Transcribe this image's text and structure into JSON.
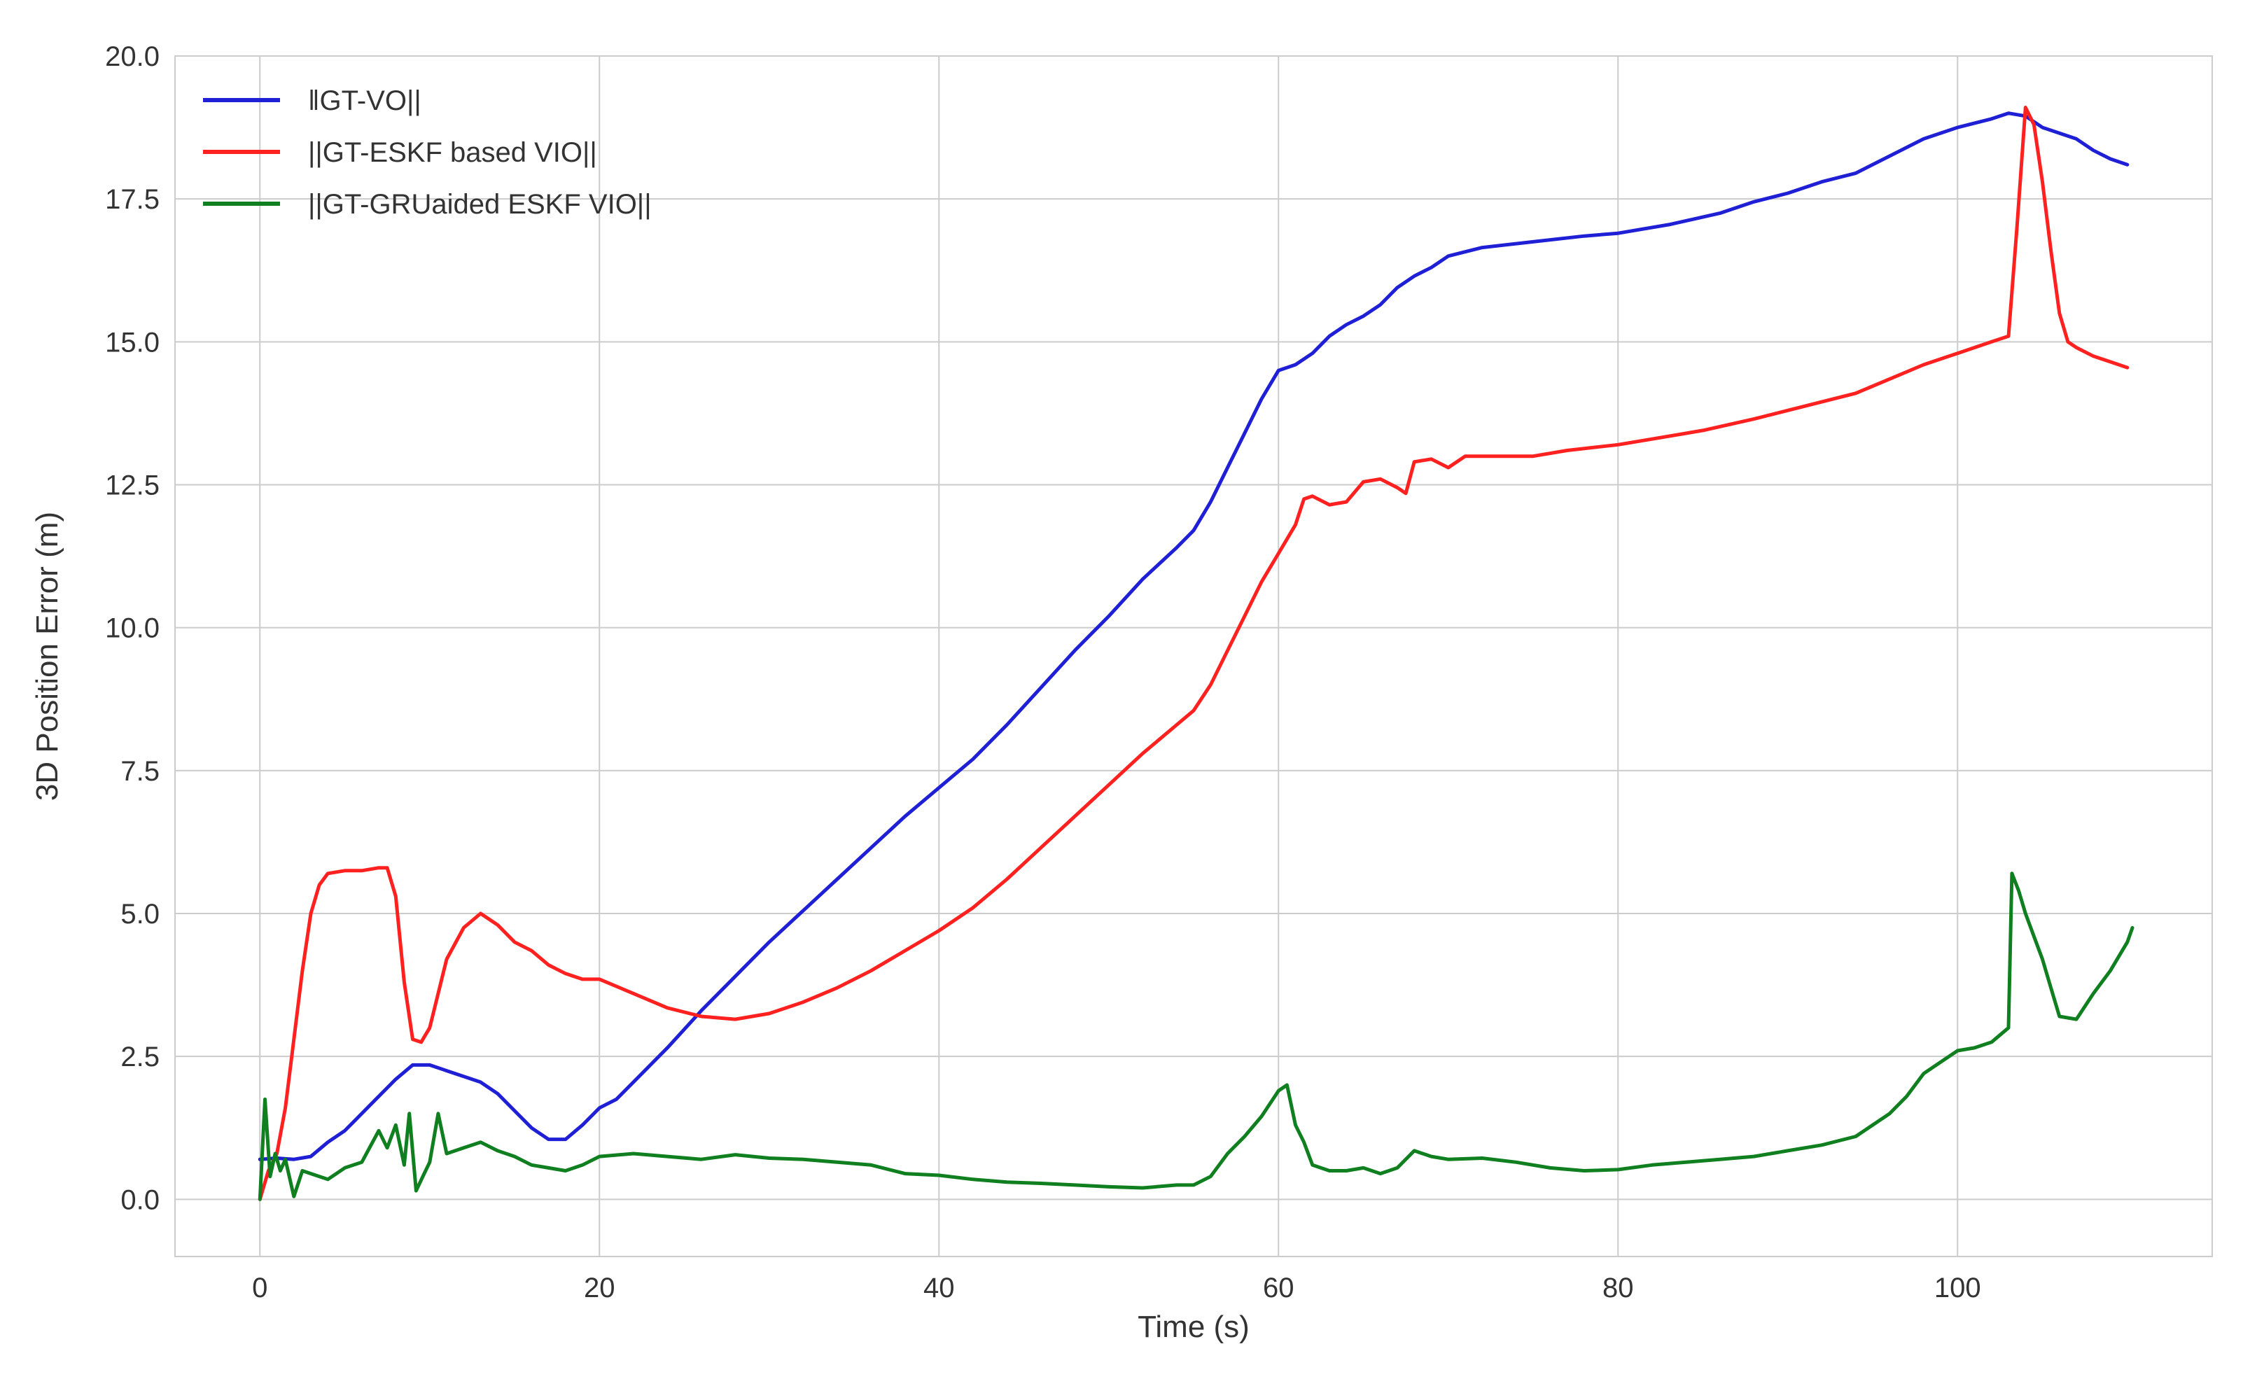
{
  "chart_data": {
    "type": "line",
    "title": "",
    "xlabel": "Time (s)",
    "ylabel": "3D Position Error (m)",
    "xlim": [
      -5,
      115
    ],
    "ylim": [
      -1.0,
      20.0
    ],
    "xticks": [
      0,
      20,
      40,
      60,
      80,
      100
    ],
    "xtick_labels": [
      "0",
      "20",
      "40",
      "60",
      "80",
      "100"
    ],
    "yticks": [
      0.0,
      2.5,
      5.0,
      7.5,
      10.0,
      12.5,
      15.0,
      17.5,
      20.0
    ],
    "ytick_labels": [
      "0.0",
      "2.5",
      "5.0",
      "7.5",
      "10.0",
      "12.5",
      "15.0",
      "17.5",
      "20.0"
    ],
    "grid": true,
    "legend_position": "top-left",
    "series": [
      {
        "name": "‖GT-VO||",
        "color": "#1f1fd6",
        "points": [
          [
            0,
            0.7
          ],
          [
            1,
            0.72
          ],
          [
            2,
            0.7
          ],
          [
            3,
            0.75
          ],
          [
            4,
            1.0
          ],
          [
            5,
            1.2
          ],
          [
            6,
            1.5
          ],
          [
            7,
            1.8
          ],
          [
            8,
            2.1
          ],
          [
            9,
            2.35
          ],
          [
            10,
            2.35
          ],
          [
            11,
            2.25
          ],
          [
            12,
            2.15
          ],
          [
            13,
            2.05
          ],
          [
            14,
            1.85
          ],
          [
            15,
            1.55
          ],
          [
            16,
            1.25
          ],
          [
            17,
            1.05
          ],
          [
            18,
            1.05
          ],
          [
            19,
            1.3
          ],
          [
            20,
            1.6
          ],
          [
            21,
            1.75
          ],
          [
            22,
            2.05
          ],
          [
            24,
            2.65
          ],
          [
            26,
            3.3
          ],
          [
            28,
            3.9
          ],
          [
            30,
            4.5
          ],
          [
            32,
            5.05
          ],
          [
            34,
            5.6
          ],
          [
            36,
            6.15
          ],
          [
            38,
            6.7
          ],
          [
            40,
            7.2
          ],
          [
            42,
            7.7
          ],
          [
            44,
            8.3
          ],
          [
            46,
            8.95
          ],
          [
            48,
            9.6
          ],
          [
            50,
            10.2
          ],
          [
            52,
            10.85
          ],
          [
            54,
            11.4
          ],
          [
            55,
            11.7
          ],
          [
            56,
            12.2
          ],
          [
            57,
            12.8
          ],
          [
            58,
            13.4
          ],
          [
            59,
            14.0
          ],
          [
            60,
            14.5
          ],
          [
            61,
            14.6
          ],
          [
            62,
            14.8
          ],
          [
            63,
            15.1
          ],
          [
            64,
            15.3
          ],
          [
            65,
            15.45
          ],
          [
            66,
            15.65
          ],
          [
            67,
            15.95
          ],
          [
            68,
            16.15
          ],
          [
            69,
            16.3
          ],
          [
            70,
            16.5
          ],
          [
            72,
            16.65
          ],
          [
            75,
            16.75
          ],
          [
            78,
            16.85
          ],
          [
            80,
            16.9
          ],
          [
            83,
            17.05
          ],
          [
            86,
            17.25
          ],
          [
            88,
            17.45
          ],
          [
            90,
            17.6
          ],
          [
            92,
            17.8
          ],
          [
            94,
            17.95
          ],
          [
            96,
            18.25
          ],
          [
            98,
            18.55
          ],
          [
            100,
            18.75
          ],
          [
            102,
            18.9
          ],
          [
            103,
            19.0
          ],
          [
            104,
            18.95
          ],
          [
            105,
            18.75
          ],
          [
            106,
            18.65
          ],
          [
            107,
            18.55
          ],
          [
            108,
            18.35
          ],
          [
            109,
            18.2
          ],
          [
            110,
            18.1
          ]
        ]
      },
      {
        "name": "||GT-ESKF based VIO||",
        "color": "#ff2020",
        "points": [
          [
            0,
            0.0
          ],
          [
            0.5,
            0.5
          ],
          [
            1,
            0.8
          ],
          [
            1.5,
            1.6
          ],
          [
            2,
            2.8
          ],
          [
            2.5,
            4.0
          ],
          [
            3,
            5.0
          ],
          [
            3.5,
            5.5
          ],
          [
            4,
            5.7
          ],
          [
            5,
            5.75
          ],
          [
            6,
            5.75
          ],
          [
            7,
            5.8
          ],
          [
            7.5,
            5.8
          ],
          [
            8,
            5.3
          ],
          [
            8.5,
            3.8
          ],
          [
            9,
            2.8
          ],
          [
            9.5,
            2.75
          ],
          [
            10,
            3.0
          ],
          [
            11,
            4.2
          ],
          [
            12,
            4.75
          ],
          [
            13,
            5.0
          ],
          [
            14,
            4.8
          ],
          [
            15,
            4.5
          ],
          [
            16,
            4.35
          ],
          [
            17,
            4.1
          ],
          [
            18,
            3.95
          ],
          [
            19,
            3.85
          ],
          [
            20,
            3.85
          ],
          [
            22,
            3.6
          ],
          [
            24,
            3.35
          ],
          [
            26,
            3.2
          ],
          [
            28,
            3.15
          ],
          [
            30,
            3.25
          ],
          [
            32,
            3.45
          ],
          [
            34,
            3.7
          ],
          [
            36,
            4.0
          ],
          [
            38,
            4.35
          ],
          [
            40,
            4.7
          ],
          [
            42,
            5.1
          ],
          [
            44,
            5.6
          ],
          [
            46,
            6.15
          ],
          [
            48,
            6.7
          ],
          [
            50,
            7.25
          ],
          [
            52,
            7.8
          ],
          [
            54,
            8.3
          ],
          [
            55,
            8.55
          ],
          [
            56,
            9.0
          ],
          [
            57,
            9.6
          ],
          [
            58,
            10.2
          ],
          [
            59,
            10.8
          ],
          [
            60,
            11.3
          ],
          [
            61,
            11.8
          ],
          [
            61.5,
            12.25
          ],
          [
            62,
            12.3
          ],
          [
            63,
            12.15
          ],
          [
            64,
            12.2
          ],
          [
            65,
            12.55
          ],
          [
            66,
            12.6
          ],
          [
            67,
            12.45
          ],
          [
            67.5,
            12.35
          ],
          [
            68,
            12.9
          ],
          [
            69,
            12.95
          ],
          [
            70,
            12.8
          ],
          [
            71,
            13.0
          ],
          [
            73,
            13.0
          ],
          [
            75,
            13.0
          ],
          [
            77,
            13.1
          ],
          [
            80,
            13.2
          ],
          [
            82,
            13.3
          ],
          [
            85,
            13.45
          ],
          [
            88,
            13.65
          ],
          [
            90,
            13.8
          ],
          [
            92,
            13.95
          ],
          [
            94,
            14.1
          ],
          [
            96,
            14.35
          ],
          [
            98,
            14.6
          ],
          [
            100,
            14.8
          ],
          [
            102,
            15.0
          ],
          [
            103,
            15.1
          ],
          [
            103.5,
            17.0
          ],
          [
            104,
            19.1
          ],
          [
            104.5,
            18.8
          ],
          [
            105,
            17.8
          ],
          [
            105.5,
            16.6
          ],
          [
            106,
            15.5
          ],
          [
            106.5,
            15.0
          ],
          [
            107,
            14.9
          ],
          [
            108,
            14.75
          ],
          [
            109,
            14.65
          ],
          [
            110,
            14.55
          ]
        ]
      },
      {
        "name": "||GT-GRUaided ESKF VIO||",
        "color": "#0f7f1f",
        "points": [
          [
            0,
            0.0
          ],
          [
            0.3,
            1.75
          ],
          [
            0.6,
            0.4
          ],
          [
            0.9,
            0.8
          ],
          [
            1.2,
            0.5
          ],
          [
            1.5,
            0.7
          ],
          [
            2,
            0.05
          ],
          [
            2.5,
            0.5
          ],
          [
            3,
            0.45
          ],
          [
            4,
            0.35
          ],
          [
            5,
            0.55
          ],
          [
            6,
            0.65
          ],
          [
            7,
            1.2
          ],
          [
            7.5,
            0.9
          ],
          [
            8,
            1.3
          ],
          [
            8.5,
            0.6
          ],
          [
            8.8,
            1.5
          ],
          [
            9.2,
            0.15
          ],
          [
            9.6,
            0.4
          ],
          [
            10,
            0.65
          ],
          [
            10.5,
            1.5
          ],
          [
            11,
            0.8
          ],
          [
            12,
            0.9
          ],
          [
            13,
            1.0
          ],
          [
            14,
            0.85
          ],
          [
            15,
            0.75
          ],
          [
            16,
            0.6
          ],
          [
            17,
            0.55
          ],
          [
            18,
            0.5
          ],
          [
            19,
            0.6
          ],
          [
            20,
            0.75
          ],
          [
            22,
            0.8
          ],
          [
            24,
            0.75
          ],
          [
            26,
            0.7
          ],
          [
            28,
            0.78
          ],
          [
            30,
            0.72
          ],
          [
            32,
            0.7
          ],
          [
            34,
            0.65
          ],
          [
            36,
            0.6
          ],
          [
            38,
            0.45
          ],
          [
            40,
            0.42
          ],
          [
            42,
            0.35
          ],
          [
            44,
            0.3
          ],
          [
            46,
            0.28
          ],
          [
            48,
            0.25
          ],
          [
            50,
            0.22
          ],
          [
            52,
            0.2
          ],
          [
            54,
            0.25
          ],
          [
            55,
            0.25
          ],
          [
            56,
            0.4
          ],
          [
            57,
            0.8
          ],
          [
            58,
            1.1
          ],
          [
            59,
            1.45
          ],
          [
            60,
            1.9
          ],
          [
            60.5,
            2.0
          ],
          [
            61,
            1.3
          ],
          [
            61.5,
            1.0
          ],
          [
            62,
            0.6
          ],
          [
            63,
            0.5
          ],
          [
            64,
            0.5
          ],
          [
            65,
            0.55
          ],
          [
            66,
            0.45
          ],
          [
            67,
            0.55
          ],
          [
            68,
            0.85
          ],
          [
            69,
            0.75
          ],
          [
            70,
            0.7
          ],
          [
            72,
            0.72
          ],
          [
            74,
            0.65
          ],
          [
            76,
            0.55
          ],
          [
            78,
            0.5
          ],
          [
            80,
            0.52
          ],
          [
            82,
            0.6
          ],
          [
            84,
            0.65
          ],
          [
            86,
            0.7
          ],
          [
            88,
            0.75
          ],
          [
            90,
            0.85
          ],
          [
            92,
            0.95
          ],
          [
            94,
            1.1
          ],
          [
            96,
            1.5
          ],
          [
            97,
            1.8
          ],
          [
            98,
            2.2
          ],
          [
            99,
            2.4
          ],
          [
            100,
            2.6
          ],
          [
            101,
            2.65
          ],
          [
            102,
            2.75
          ],
          [
            103,
            3.0
          ],
          [
            103.2,
            5.7
          ],
          [
            103.6,
            5.4
          ],
          [
            104,
            5.0
          ],
          [
            104.5,
            4.6
          ],
          [
            105,
            4.2
          ],
          [
            105.5,
            3.7
          ],
          [
            106,
            3.2
          ],
          [
            107,
            3.15
          ],
          [
            108,
            3.6
          ],
          [
            109,
            4.0
          ],
          [
            110,
            4.5
          ],
          [
            110.3,
            4.75
          ]
        ]
      }
    ]
  }
}
